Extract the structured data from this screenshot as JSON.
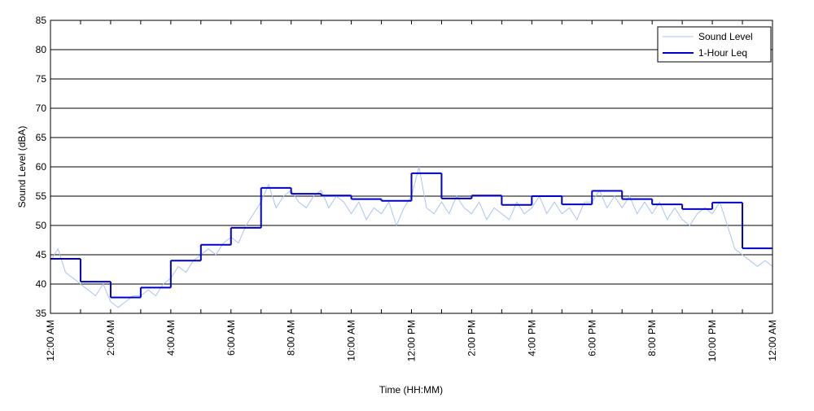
{
  "chart_data": {
    "type": "line",
    "ylabel": "Sound Level (dBA)",
    "xlabel": "Time (HH:MM)",
    "xlim": [
      0,
      24
    ],
    "xticks": [
      {
        "value": 0,
        "label": "12:00 AM"
      },
      {
        "value": 2,
        "label": "2:00 AM"
      },
      {
        "value": 4,
        "label": "4:00 AM"
      },
      {
        "value": 6,
        "label": "6:00 AM"
      },
      {
        "value": 8,
        "label": "8:00 AM"
      },
      {
        "value": 10,
        "label": "10:00 AM"
      },
      {
        "value": 12,
        "label": "12:00 PM"
      },
      {
        "value": 14,
        "label": "2:00 PM"
      },
      {
        "value": 16,
        "label": "4:00 PM"
      },
      {
        "value": 18,
        "label": "6:00 PM"
      },
      {
        "value": 20,
        "label": "8:00 PM"
      },
      {
        "value": 22,
        "label": "10:00 PM"
      },
      {
        "value": 24,
        "label": "12:00 AM"
      }
    ],
    "xminorticks": [
      1,
      3,
      5,
      7,
      9,
      11,
      13,
      15,
      17,
      19,
      21,
      23
    ],
    "ylim": [
      35,
      85
    ],
    "yticks": [
      35,
      40,
      45,
      50,
      55,
      60,
      65,
      70,
      75,
      80,
      85
    ],
    "grid": true,
    "legend": "upper right",
    "series": [
      {
        "name": "Sound Level",
        "color": "#a8c4f4",
        "style": "line",
        "x": [
          0,
          0.25,
          0.5,
          0.75,
          1,
          1.25,
          1.5,
          1.75,
          2,
          2.25,
          2.5,
          2.75,
          3,
          3.25,
          3.5,
          3.75,
          4,
          4.25,
          4.5,
          4.75,
          5,
          5.25,
          5.5,
          5.75,
          6,
          6.25,
          6.5,
          6.75,
          7,
          7.25,
          7.5,
          7.75,
          8,
          8.25,
          8.5,
          8.75,
          9,
          9.25,
          9.5,
          9.75,
          10,
          10.25,
          10.5,
          10.75,
          11,
          11.25,
          11.5,
          11.75,
          12,
          12.25,
          12.5,
          12.75,
          13,
          13.25,
          13.5,
          13.75,
          14,
          14.25,
          14.5,
          14.75,
          15,
          15.25,
          15.5,
          15.75,
          16,
          16.25,
          16.5,
          16.75,
          17,
          17.25,
          17.5,
          17.75,
          18,
          18.25,
          18.5,
          18.75,
          19,
          19.25,
          19.5,
          19.75,
          20,
          20.25,
          20.5,
          20.75,
          21,
          21.25,
          21.5,
          21.75,
          22,
          22.25,
          22.5,
          22.75,
          23,
          23.25,
          23.5,
          23.75,
          24
        ],
        "values": [
          44,
          46,
          42,
          41,
          40,
          39,
          38,
          40,
          37,
          36,
          37,
          38,
          38,
          39,
          38,
          40,
          41,
          43,
          42,
          44,
          45,
          46,
          45,
          47,
          48,
          47,
          50,
          52,
          54,
          57,
          53,
          55,
          56,
          54,
          53,
          55,
          56,
          53,
          55,
          54,
          52,
          54,
          51,
          53,
          52,
          54,
          50,
          53,
          55,
          60,
          53,
          52,
          54,
          52,
          55,
          53,
          52,
          54,
          51,
          53,
          52,
          51,
          54,
          52,
          53,
          55,
          52,
          54,
          52,
          53,
          51,
          54,
          54,
          56,
          53,
          55,
          53,
          55,
          52,
          54,
          52,
          54,
          51,
          53,
          51,
          50,
          52,
          53,
          52,
          54,
          50,
          46,
          45,
          44,
          43,
          44,
          43
        ]
      },
      {
        "name": "1-Hour Leq",
        "color": "#0000cc",
        "style": "step",
        "x": [
          0,
          1,
          2,
          3,
          4,
          5,
          6,
          7,
          8,
          9,
          10,
          11,
          12,
          13,
          14,
          15,
          16,
          17,
          18,
          19,
          20,
          21,
          22,
          23
        ],
        "values": [
          44.3,
          40.4,
          37.7,
          39.4,
          44.0,
          46.7,
          49.6,
          56.4,
          55.4,
          55.1,
          54.5,
          54.2,
          58.9,
          54.6,
          55.1,
          53.5,
          55.0,
          53.6,
          55.9,
          54.5,
          53.6,
          52.8,
          53.9,
          46.1
        ]
      }
    ]
  }
}
